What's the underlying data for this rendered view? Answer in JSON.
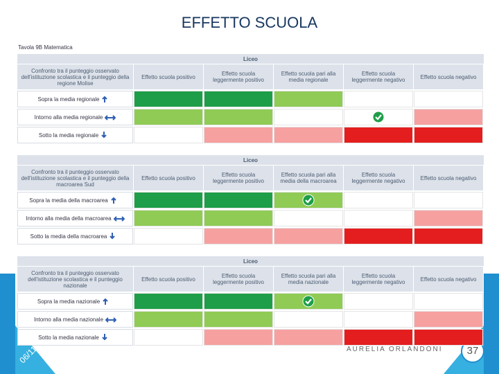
{
  "header": {
    "title": "EFFETTO SCUOLA"
  },
  "table": {
    "caption": "Tavola 9B Matematica",
    "blocks": [
      {
        "group": "Liceo",
        "corner": "Confronto tra il punteggio osservato dell'istituzione scolastica e il punteggio della regione Molise",
        "columns": [
          "Effetto scuola positivo",
          "Effetto scuola leggermente positivo",
          "Effetto scuola pari alla media regionale",
          "Effetto scuola leggermente negativo",
          "Effetto scuola negativo"
        ],
        "rows": [
          "Sopra la media regionale",
          "Intorno alla media regionale",
          "Sotto la media regionale"
        ]
      },
      {
        "group": "Liceo",
        "corner": "Confronto tra il punteggio osservato dell'istituzione scolastica e il punteggio della macroarea Sud",
        "columns": [
          "Effetto scuola positivo",
          "Effetto scuola leggermente positivo",
          "Effetto scuola pari alla media della macroarea",
          "Effetto scuola leggermente negativo",
          "Effetto scuola negativo"
        ],
        "rows": [
          "Sopra la media della macroarea",
          "Intorno alla media della macroarea",
          "Sotto la media della macroarea"
        ]
      },
      {
        "group": "Liceo",
        "corner": "Confronto tra il punteggio osservato dell'istituzione scolastica e il punteggio nazionale",
        "columns": [
          "Effetto scuola positivo",
          "Effetto scuola leggermente positivo",
          "Effetto scuola pari alla media nazionale",
          "Effetto scuola leggermente negativo",
          "Effetto scuola negativo"
        ],
        "rows": [
          "Sopra la media nazionale",
          "Intorno alla media nazionale",
          "Sotto la media nazionale"
        ]
      }
    ]
  },
  "footer": {
    "author": "AURELIA ORLANDONI",
    "date": "06/11",
    "page": "37"
  }
}
